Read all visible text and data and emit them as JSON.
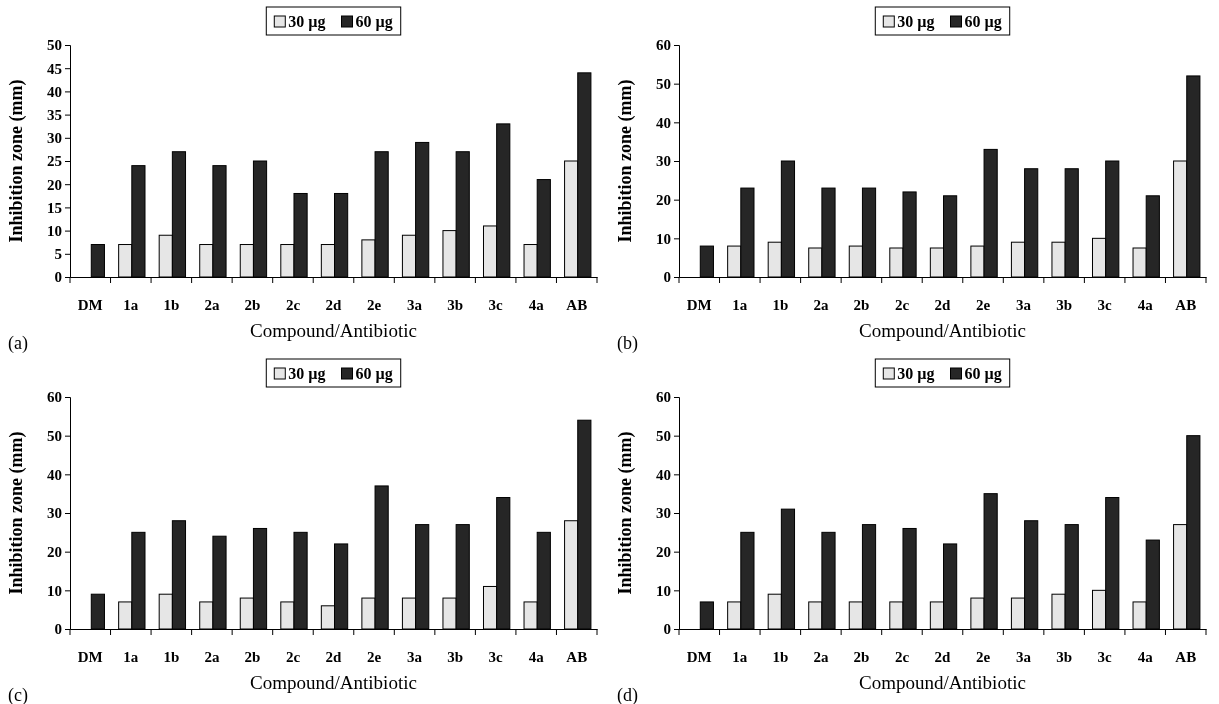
{
  "chart_data": [
    {
      "type": "bar",
      "xlabel": "Compound/Antibiotic",
      "ylabel": "Inhibition zone (mm)",
      "categories": [
        "DM",
        "1a",
        "1b",
        "2a",
        "2b",
        "2c",
        "2d",
        "2e",
        "3a",
        "3b",
        "3c",
        "4a",
        "AB"
      ],
      "series": [
        {
          "name": "30 µg",
          "color": "#e6e6e6",
          "values": [
            null,
            7,
            9,
            7,
            7,
            7,
            7,
            8,
            9,
            10,
            11,
            7,
            25
          ]
        },
        {
          "name": "60 µg",
          "color": "#262626",
          "values": [
            7,
            24,
            27,
            24,
            25,
            18,
            18,
            27,
            29,
            27,
            33,
            21,
            44
          ]
        }
      ],
      "ylim": [
        0,
        50
      ],
      "yticks": [
        0,
        5,
        10,
        15,
        20,
        25,
        30,
        35,
        40,
        45,
        50
      ],
      "legend": "top",
      "annotations": [
        "(a)"
      ]
    },
    {
      "type": "bar",
      "xlabel": "Compound/Antibiotic",
      "ylabel": "Inhibition zone (mm)",
      "categories": [
        "DM",
        "1a",
        "1b",
        "2a",
        "2b",
        "2c",
        "2d",
        "2e",
        "3a",
        "3b",
        "3c",
        "4a",
        "AB"
      ],
      "series": [
        {
          "name": "30 µg",
          "color": "#e6e6e6",
          "values": [
            null,
            8,
            9,
            7.5,
            8,
            7.5,
            7.5,
            8,
            9,
            9,
            10,
            7.5,
            30
          ]
        },
        {
          "name": "60 µg",
          "color": "#262626",
          "values": [
            8,
            23,
            30,
            23,
            23,
            22,
            21,
            33,
            28,
            28,
            30,
            21,
            52
          ]
        }
      ],
      "ylim": [
        0,
        60
      ],
      "yticks": [
        0,
        10,
        20,
        30,
        40,
        50,
        60
      ],
      "legend": "top",
      "annotations": [
        "(b)"
      ]
    },
    {
      "type": "bar",
      "xlabel": "Compound/Antibiotic",
      "ylabel": "Inhibition zone (mm)",
      "categories": [
        "DM",
        "1a",
        "1b",
        "2a",
        "2b",
        "2c",
        "2d",
        "2e",
        "3a",
        "3b",
        "3c",
        "4a",
        "AB"
      ],
      "series": [
        {
          "name": "30 µg",
          "color": "#e6e6e6",
          "values": [
            null,
            7,
            9,
            7,
            8,
            7,
            6,
            8,
            8,
            8,
            11,
            7,
            28
          ]
        },
        {
          "name": "60 µg",
          "color": "#262626",
          "values": [
            9,
            25,
            28,
            24,
            26,
            25,
            22,
            37,
            27,
            27,
            34,
            25,
            54
          ]
        }
      ],
      "ylim": [
        0,
        60
      ],
      "yticks": [
        0,
        10,
        20,
        30,
        40,
        50,
        60
      ],
      "legend": "top",
      "annotations": [
        "(c)"
      ]
    },
    {
      "type": "bar",
      "xlabel": "Compound/Antibiotic",
      "ylabel": "Inhibition zone (mm)",
      "categories": [
        "DM",
        "1a",
        "1b",
        "2a",
        "2b",
        "2c",
        "2d",
        "2e",
        "3a",
        "3b",
        "3c",
        "4a",
        "AB"
      ],
      "series": [
        {
          "name": "30 µg",
          "color": "#e6e6e6",
          "values": [
            null,
            7,
            9,
            7,
            7,
            7,
            7,
            8,
            8,
            9,
            10,
            7,
            27
          ]
        },
        {
          "name": "60 µg",
          "color": "#262626",
          "values": [
            7,
            25,
            31,
            25,
            27,
            26,
            22,
            35,
            28,
            27,
            34,
            23,
            50
          ]
        }
      ],
      "ylim": [
        0,
        60
      ],
      "yticks": [
        0,
        10,
        20,
        30,
        40,
        50,
        60
      ],
      "legend": "top",
      "annotations": [
        "(d)"
      ]
    }
  ]
}
